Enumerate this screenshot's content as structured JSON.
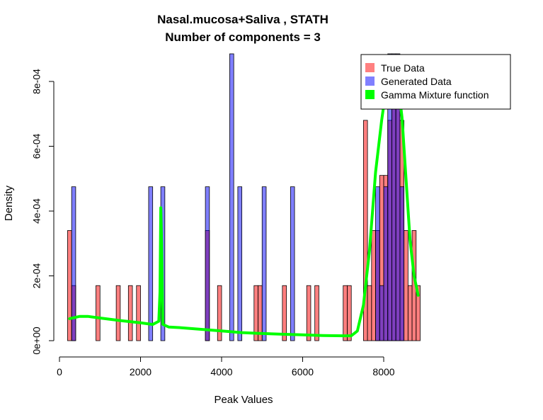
{
  "chart_data": {
    "type": "histogram",
    "title": "Nasal.mucosa+Saliva , STATH",
    "subtitle": "Number of components =  3",
    "xlabel": "Peak Values",
    "ylabel": "Density",
    "xlim": [
      0,
      9000
    ],
    "ylim": [
      0,
      0.0009
    ],
    "x_ticks": [
      0,
      2000,
      4000,
      6000,
      8000
    ],
    "x_tick_labels": [
      "0",
      "2000",
      "4000",
      "6000",
      "8000"
    ],
    "y_ticks": [
      0,
      0.0002,
      0.0004,
      0.0006,
      0.0008
    ],
    "y_tick_labels": [
      "0e+00",
      "2e-04",
      "4e-04",
      "6e-04",
      "8e-04"
    ],
    "bin_width": 100,
    "legend": {
      "position": "top-right",
      "entries": [
        {
          "label": "True Data",
          "color": "#FF8080"
        },
        {
          "label": "Generated Data",
          "color": "#8080FF"
        },
        {
          "label": "Gamma Mixture function",
          "color": "#00FF00"
        }
      ]
    },
    "series": [
      {
        "name": "True Data",
        "color": "#FF8080",
        "bins": [
          {
            "x": 200,
            "y": 0.00034
          },
          {
            "x": 300,
            "y": 0.00017
          },
          {
            "x": 900,
            "y": 0.00017
          },
          {
            "x": 1400,
            "y": 0.00017
          },
          {
            "x": 1700,
            "y": 0.00017
          },
          {
            "x": 1900,
            "y": 0.00017
          },
          {
            "x": 3600,
            "y": 0.00034
          },
          {
            "x": 3900,
            "y": 0.00017
          },
          {
            "x": 4800,
            "y": 0.00017
          },
          {
            "x": 4900,
            "y": 0.00017
          },
          {
            "x": 5500,
            "y": 0.00017
          },
          {
            "x": 6100,
            "y": 0.00017
          },
          {
            "x": 6300,
            "y": 0.00017
          },
          {
            "x": 7000,
            "y": 0.00017
          },
          {
            "x": 7100,
            "y": 0.00017
          },
          {
            "x": 7500,
            "y": 0.00068
          },
          {
            "x": 7600,
            "y": 0.00017
          },
          {
            "x": 7700,
            "y": 0.00034
          },
          {
            "x": 7800,
            "y": 0.00034
          },
          {
            "x": 7900,
            "y": 0.00051
          },
          {
            "x": 8000,
            "y": 0.00051
          },
          {
            "x": 8100,
            "y": 0.00068
          },
          {
            "x": 8200,
            "y": 0.00085
          },
          {
            "x": 8300,
            "y": 0.00085
          },
          {
            "x": 8400,
            "y": 0.00068
          },
          {
            "x": 8500,
            "y": 0.00034
          },
          {
            "x": 8600,
            "y": 0.00017
          },
          {
            "x": 8700,
            "y": 0.00034
          },
          {
            "x": 8800,
            "y": 0.00017
          }
        ]
      },
      {
        "name": "Generated Data",
        "color": "#8080FF",
        "bins": [
          {
            "x": 300,
            "y": 0.000475
          },
          {
            "x": 2200,
            "y": 0.000475
          },
          {
            "x": 2500,
            "y": 0.000475
          },
          {
            "x": 3600,
            "y": 0.000475
          },
          {
            "x": 4200,
            "y": 0.00095
          },
          {
            "x": 4400,
            "y": 0.000475
          },
          {
            "x": 5000,
            "y": 0.000475
          },
          {
            "x": 5700,
            "y": 0.000475
          },
          {
            "x": 7800,
            "y": 0.000475
          },
          {
            "x": 7900,
            "y": 0.00017
          },
          {
            "x": 8000,
            "y": 0.000475
          },
          {
            "x": 8100,
            "y": 0.00095
          },
          {
            "x": 8200,
            "y": 0.00095
          },
          {
            "x": 8300,
            "y": 0.00095
          },
          {
            "x": 8400,
            "y": 0.000475
          }
        ]
      },
      {
        "name": "Gamma Mixture function",
        "color": "#00FF00",
        "type": "line",
        "points": [
          [
            250,
            6.8e-05
          ],
          [
            500,
            7.5e-05
          ],
          [
            700,
            7.5e-05
          ],
          [
            1000,
            7e-05
          ],
          [
            1500,
            6.2e-05
          ],
          [
            2000,
            5.5e-05
          ],
          [
            2300,
            5e-05
          ],
          [
            2450,
            6e-05
          ],
          [
            2480,
            0.00015
          ],
          [
            2500,
            0.00041
          ],
          [
            2520,
            0.0003
          ],
          [
            2550,
            5e-05
          ],
          [
            2700,
            4.2e-05
          ],
          [
            3000,
            4e-05
          ],
          [
            3500,
            3.5e-05
          ],
          [
            4000,
            3e-05
          ],
          [
            4500,
            2.5e-05
          ],
          [
            5000,
            2.2e-05
          ],
          [
            5500,
            2e-05
          ],
          [
            6000,
            1.8e-05
          ],
          [
            6500,
            1.6e-05
          ],
          [
            7000,
            1.5e-05
          ],
          [
            7200,
            1.5e-05
          ],
          [
            7350,
            3e-05
          ],
          [
            7500,
            0.00011
          ],
          [
            7650,
            0.00028
          ],
          [
            7800,
            0.00052
          ],
          [
            7950,
            0.00068
          ],
          [
            8050,
            0.00077
          ],
          [
            8150,
            0.00083
          ],
          [
            8250,
            0.00085
          ],
          [
            8350,
            0.0008
          ],
          [
            8450,
            0.00069
          ],
          [
            8550,
            0.0005
          ],
          [
            8650,
            0.00031
          ],
          [
            8750,
            0.0002
          ],
          [
            8850,
            0.00014
          ]
        ]
      }
    ]
  }
}
